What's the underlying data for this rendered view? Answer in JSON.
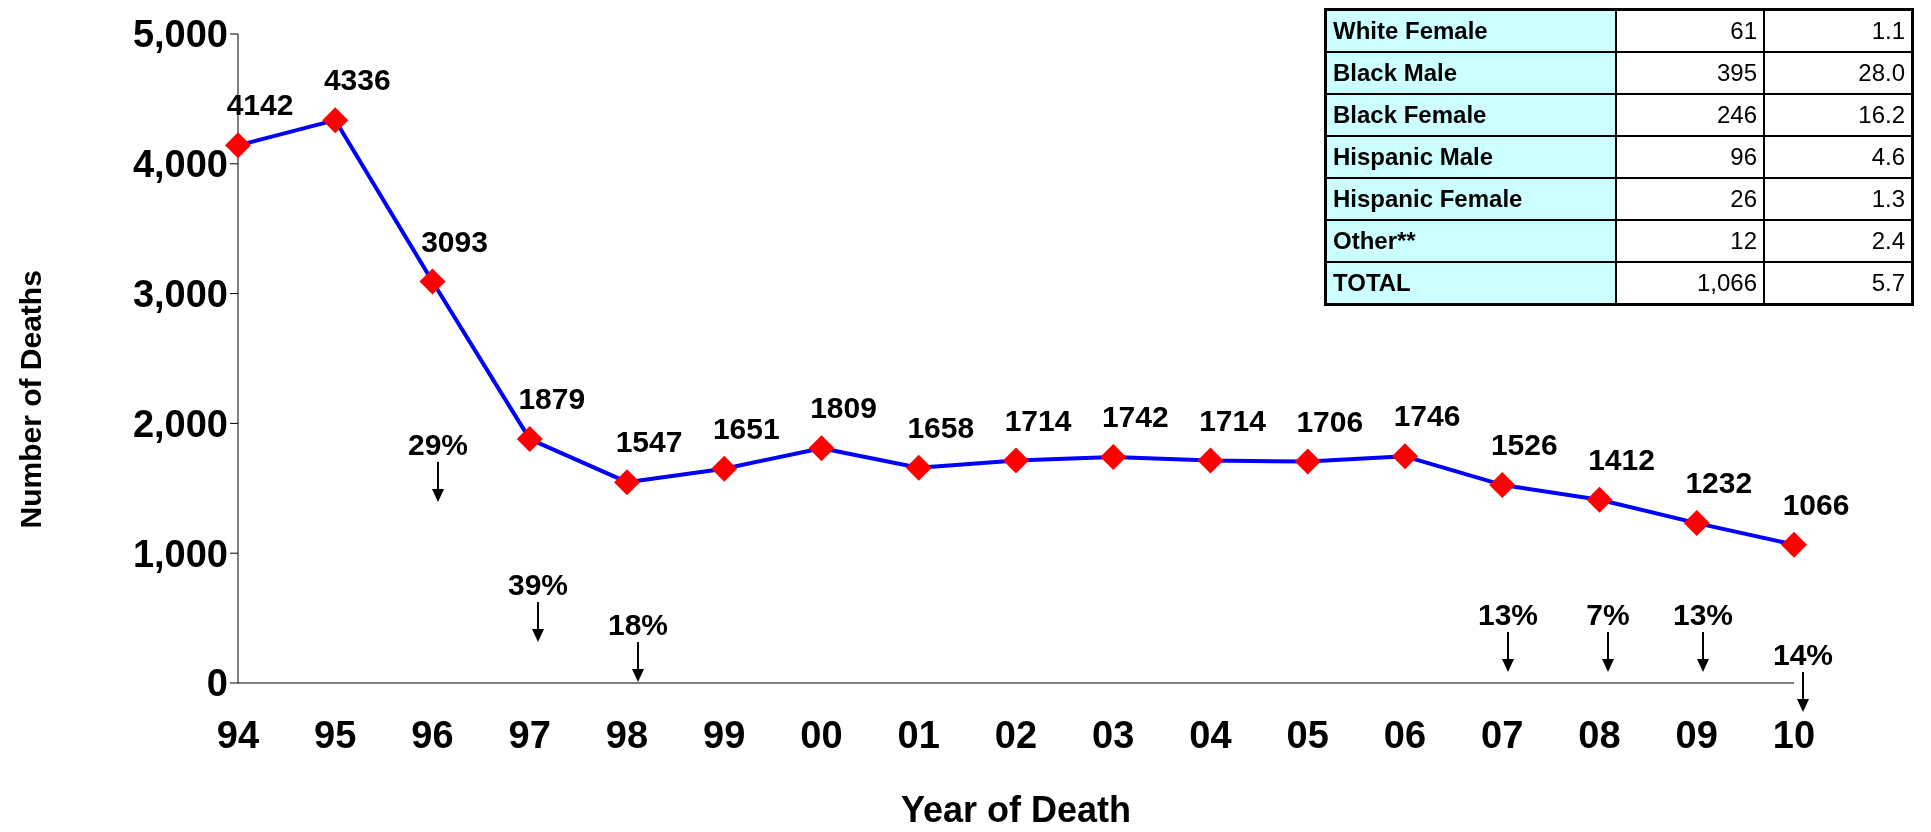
{
  "chart_data": [
    {
      "type": "line",
      "xlabel": "Year of Death",
      "ylabel": "Number of Deaths",
      "categories": [
        "94",
        "95",
        "96",
        "97",
        "98",
        "99",
        "00",
        "01",
        "02",
        "03",
        "04",
        "05",
        "06",
        "07",
        "08",
        "09",
        "10"
      ],
      "series": [
        {
          "color": "#0000ff",
          "colors": [
            "#ff0000",
            "#ff0000",
            "#ff0000",
            "#ff0000",
            "#ff0000",
            "#ff0000",
            "#ff0000",
            "#ff0000",
            "#ff0000",
            "#ff0000",
            "#ff0000",
            "#ff0000",
            "#ff0000",
            "#ff0000",
            "#ff0000",
            "#ff0000",
            "#ff0000"
          ],
          "values": [
            4142,
            4336,
            3093,
            1879,
            1547,
            1651,
            1809,
            1658,
            1714,
            1742,
            1714,
            1706,
            1746,
            1526,
            1412,
            1232,
            1066
          ]
        }
      ],
      "marker": "diamond",
      "data_labels": true,
      "ylim": [
        0,
        5000
      ],
      "yticks": [
        {
          "value": 0,
          "label": "0"
        },
        {
          "value": 1000,
          "label": "1,000"
        },
        {
          "value": 2000,
          "label": "2,000"
        },
        {
          "value": 3000,
          "label": "3,000"
        },
        {
          "value": 4000,
          "label": "4,000"
        },
        {
          "value": 5000,
          "label": "5,000"
        }
      ],
      "grid": false,
      "legend": false,
      "annotations": [
        "29%",
        "39%",
        "18%",
        "13%",
        "7%",
        "13%",
        "14%"
      ]
    },
    {
      "type": "other",
      "annotations": [
        "White Female",
        "61",
        "1.1",
        "Black Male",
        "395",
        "28.0",
        "Black Female",
        "246",
        "16.2",
        "Hispanic Male",
        "96",
        "4.6",
        "Hispanic Female",
        "26",
        "1.3",
        "Other**",
        "12",
        "2.4",
        "TOTAL",
        "1,066",
        "5.7"
      ]
    }
  ]
}
